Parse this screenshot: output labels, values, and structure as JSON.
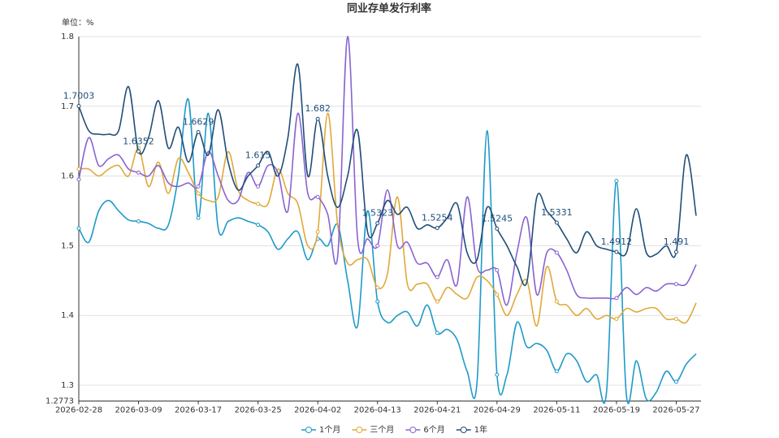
{
  "chart_data": {
    "type": "line",
    "title": "同业存单发行利率",
    "y_label": "单位：%",
    "categories": [
      "2026-02-28",
      null,
      null,
      null,
      null,
      null,
      "2026-03-09",
      null,
      null,
      null,
      null,
      null,
      "2026-03-17",
      null,
      null,
      null,
      null,
      null,
      "2026-03-25",
      null,
      null,
      null,
      null,
      null,
      "2026-04-02",
      null,
      null,
      null,
      null,
      null,
      "2026-04-13",
      null,
      null,
      null,
      null,
      null,
      "2026-04-21",
      null,
      null,
      null,
      null,
      null,
      "2026-04-29",
      null,
      null,
      null,
      null,
      null,
      "2026-05-11",
      null,
      null,
      null,
      null,
      null,
      "2026-05-19",
      null,
      null,
      null,
      null,
      null,
      "2026-05-27",
      null,
      null
    ],
    "ylim": [
      1.2773,
      1.8
    ],
    "yticks": [
      1.2773,
      1.3,
      1.4,
      1.5,
      1.6,
      1.7,
      1.8
    ],
    "grid": true,
    "smooth": true,
    "legend": "bottom",
    "series": [
      {
        "name": "1个月",
        "color": "#1f9ac9",
        "values": [
          1.525,
          1.505,
          1.55,
          1.565,
          1.55,
          1.537,
          1.535,
          1.532,
          1.525,
          1.53,
          1.6,
          1.71,
          1.54,
          1.69,
          1.525,
          1.535,
          1.54,
          1.535,
          1.53,
          1.52,
          1.495,
          1.51,
          1.52,
          1.48,
          1.51,
          1.5,
          1.53,
          1.45,
          1.385,
          1.55,
          1.42,
          1.39,
          1.4,
          1.405,
          1.385,
          1.415,
          1.375,
          1.38,
          1.365,
          1.32,
          1.305,
          1.665,
          1.315,
          1.315,
          1.39,
          1.355,
          1.36,
          1.35,
          1.32,
          1.345,
          1.335,
          1.305,
          1.315,
          1.29,
          1.593,
          1.285,
          1.335,
          1.28,
          1.29,
          1.32,
          1.305,
          1.33,
          1.345
        ]
      },
      {
        "name": "三个月",
        "color": "#e0a93a",
        "values": [
          1.61,
          1.61,
          1.6,
          1.61,
          1.615,
          1.6,
          1.64,
          1.585,
          1.62,
          1.575,
          1.625,
          1.605,
          1.575,
          1.565,
          1.57,
          1.635,
          1.58,
          1.565,
          1.56,
          1.56,
          1.61,
          1.575,
          1.56,
          1.5,
          1.52,
          1.69,
          1.53,
          1.475,
          1.48,
          1.48,
          1.44,
          1.46,
          1.57,
          1.445,
          1.445,
          1.445,
          1.42,
          1.44,
          1.43,
          1.425,
          1.455,
          1.45,
          1.43,
          1.4,
          1.43,
          1.45,
          1.385,
          1.47,
          1.42,
          1.415,
          1.4,
          1.41,
          1.395,
          1.4,
          1.395,
          1.41,
          1.405,
          1.41,
          1.41,
          1.395,
          1.395,
          1.39,
          1.418
        ]
      },
      {
        "name": "6个月",
        "color": "#8a63d2",
        "values": [
          1.595,
          1.655,
          1.615,
          1.625,
          1.63,
          1.61,
          1.605,
          1.6,
          1.615,
          1.59,
          1.585,
          1.59,
          1.585,
          1.635,
          1.6,
          1.565,
          1.565,
          1.605,
          1.585,
          1.615,
          1.605,
          1.55,
          1.69,
          1.575,
          1.57,
          1.545,
          1.485,
          1.8,
          1.51,
          1.51,
          1.5,
          1.58,
          1.5,
          1.505,
          1.475,
          1.475,
          1.455,
          1.48,
          1.445,
          1.57,
          1.47,
          1.465,
          1.465,
          1.415,
          1.49,
          1.54,
          1.43,
          1.49,
          1.49,
          1.465,
          1.43,
          1.425,
          1.425,
          1.425,
          1.425,
          1.44,
          1.43,
          1.44,
          1.435,
          1.445,
          1.445,
          1.445,
          1.473
        ]
      },
      {
        "name": "1年",
        "color": "#1f4e79",
        "values": [
          1.7003,
          1.665,
          1.66,
          1.66,
          1.665,
          1.728,
          1.6352,
          1.655,
          1.708,
          1.64,
          1.67,
          1.62,
          1.6629,
          1.63,
          1.695,
          1.62,
          1.58,
          1.6,
          1.615,
          1.635,
          1.6,
          1.655,
          1.76,
          1.6,
          1.682,
          1.6,
          1.555,
          1.6,
          1.665,
          1.52,
          1.5323,
          1.565,
          1.545,
          1.555,
          1.525,
          1.53,
          1.5254,
          1.54,
          1.56,
          1.49,
          1.48,
          1.555,
          1.5245,
          1.5,
          1.47,
          1.448,
          1.57,
          1.55,
          1.5331,
          1.51,
          1.49,
          1.52,
          1.5,
          1.495,
          1.4912,
          1.49,
          1.553,
          1.49,
          1.488,
          1.5,
          1.491,
          1.63,
          1.543
        ],
        "value_labels": [
          "1.7003",
          null,
          null,
          null,
          null,
          null,
          "1.6352",
          null,
          null,
          null,
          null,
          null,
          "1.6629",
          null,
          null,
          null,
          null,
          null,
          "1.615",
          null,
          null,
          null,
          null,
          null,
          "1.682",
          null,
          null,
          null,
          null,
          null,
          "1.5323",
          null,
          null,
          null,
          null,
          null,
          "1.5254",
          null,
          null,
          null,
          null,
          null,
          "1.5245",
          null,
          null,
          null,
          null,
          null,
          "1.5331",
          null,
          null,
          null,
          null,
          null,
          "1.4912",
          null,
          null,
          null,
          null,
          null,
          "1.491",
          null,
          null
        ]
      }
    ]
  }
}
